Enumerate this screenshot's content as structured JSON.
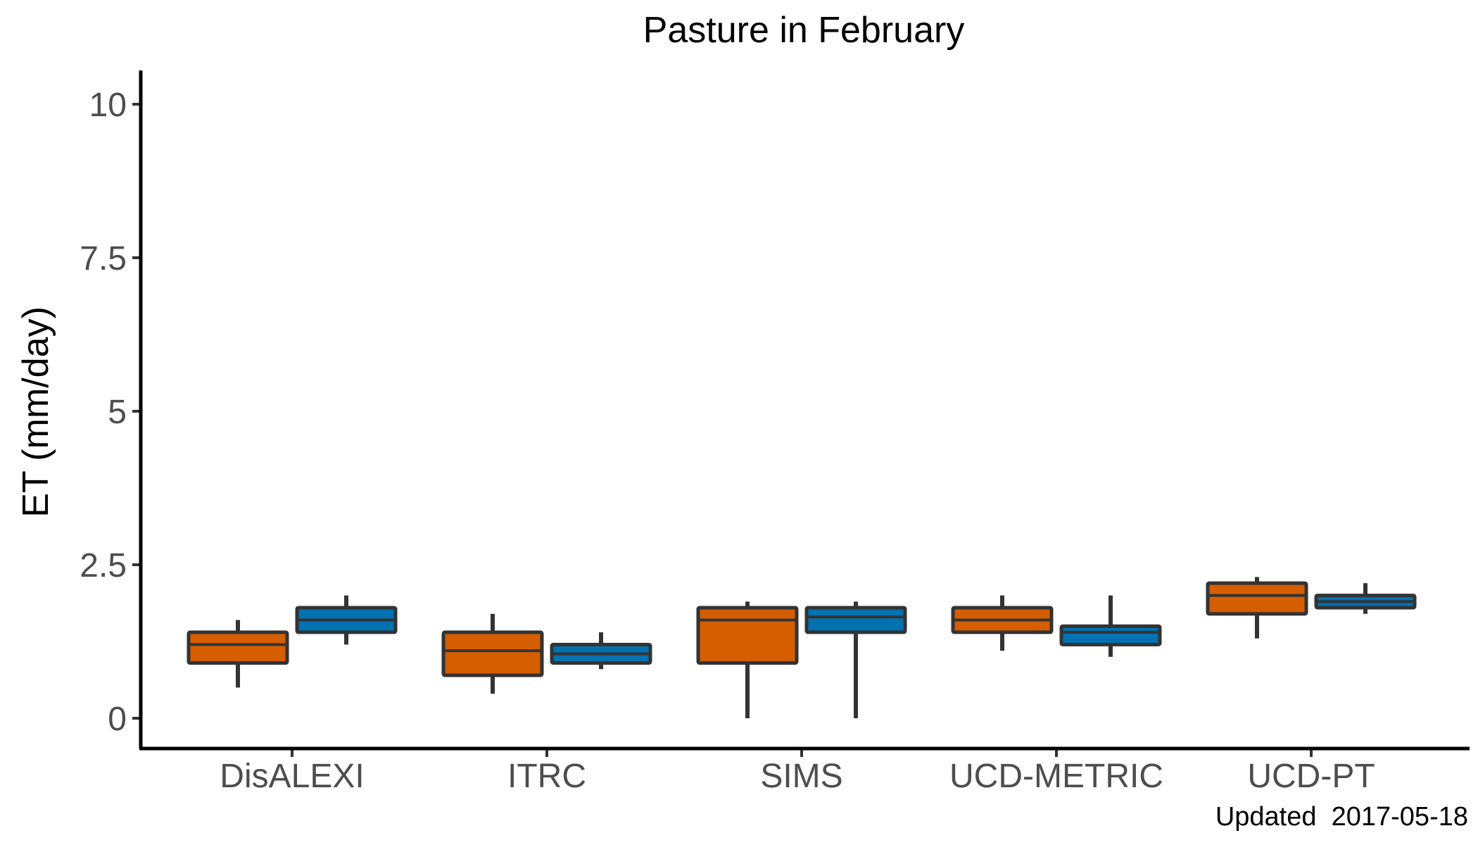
{
  "chart_data": {
    "type": "boxplot",
    "title": "Pasture in February",
    "ylabel": "ET (mm/day)",
    "xlabel": "",
    "ylim": [
      -0.5,
      10.5
    ],
    "yticks": [
      0,
      2.5,
      5,
      7.5,
      10
    ],
    "ytick_labels": [
      "0",
      "2.5",
      "5",
      "7.5",
      "10"
    ],
    "categories": [
      "DisALEXI",
      "ITRC",
      "SIMS",
      "UCD-METRIC",
      "UCD-PT"
    ],
    "grid": false,
    "legend": "none",
    "series": [
      {
        "color": "#D55E00",
        "boxes": [
          {
            "min": 0.5,
            "q1": 0.9,
            "median": 1.2,
            "q3": 1.4,
            "max": 1.6
          },
          {
            "min": 0.4,
            "q1": 0.7,
            "median": 1.1,
            "q3": 1.4,
            "max": 1.7
          },
          {
            "min": 0.0,
            "q1": 0.9,
            "median": 1.6,
            "q3": 1.8,
            "max": 1.9
          },
          {
            "min": 1.1,
            "q1": 1.4,
            "median": 1.6,
            "q3": 1.8,
            "max": 2.0
          },
          {
            "min": 1.3,
            "q1": 1.7,
            "median": 2.0,
            "q3": 2.2,
            "max": 2.3
          }
        ]
      },
      {
        "color": "#0072B2",
        "boxes": [
          {
            "min": 1.2,
            "q1": 1.4,
            "median": 1.6,
            "q3": 1.8,
            "max": 2.0
          },
          {
            "min": 0.8,
            "q1": 0.9,
            "median": 1.05,
            "q3": 1.2,
            "max": 1.4
          },
          {
            "min": 0.0,
            "q1": 1.4,
            "median": 1.65,
            "q3": 1.8,
            "max": 1.9
          },
          {
            "min": 1.0,
            "q1": 1.2,
            "median": 1.4,
            "q3": 1.5,
            "max": 2.0
          },
          {
            "min": 1.7,
            "q1": 1.8,
            "median": 1.9,
            "q3": 2.0,
            "max": 2.2
          }
        ]
      }
    ],
    "annotation": "Updated  2017-05-18"
  }
}
